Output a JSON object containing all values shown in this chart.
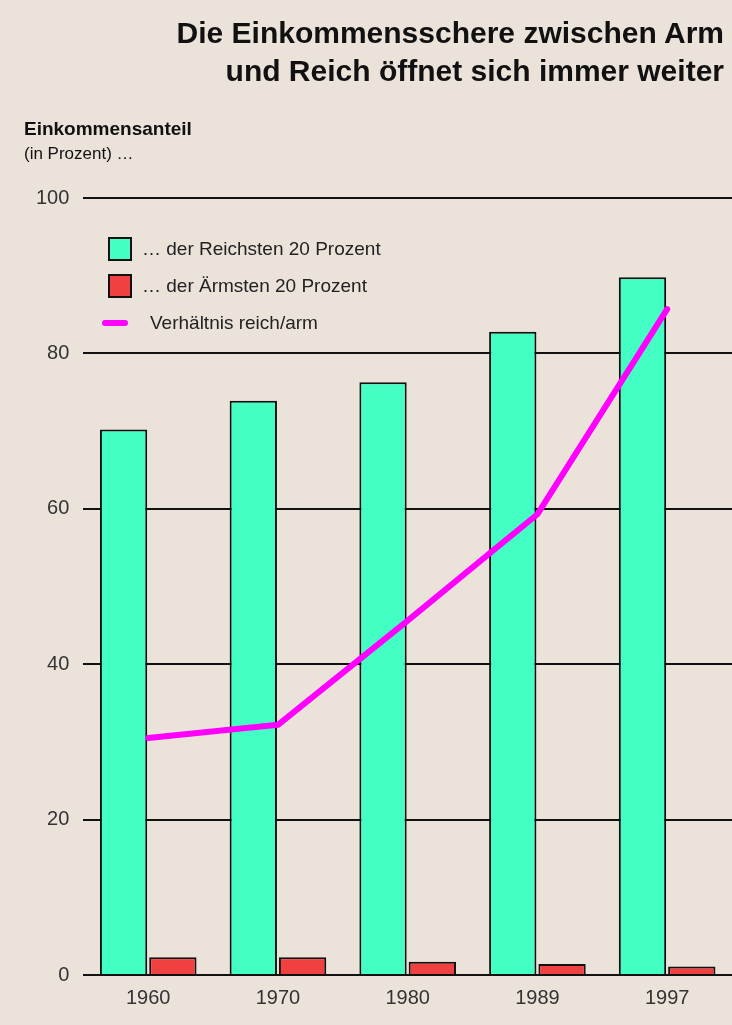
{
  "chart_data": {
    "type": "bar",
    "title": "Die Einkommensschere zwischen Arm und Reich öffnet sich immer weiter",
    "ylabel": "Einkommensanteil",
    "subtitle": "(in Prozent) …",
    "categories": [
      "1960",
      "1970",
      "1980",
      "1989",
      "1997"
    ],
    "series": [
      {
        "name": "… der Reichsten 20 Prozent",
        "color": "#44ffc4",
        "values": [
          70.2,
          73.9,
          76.3,
          82.8,
          89.8
        ]
      },
      {
        "name": "… der Ärmsten 20 Prozent",
        "color": "#f04040",
        "values": [
          2.3,
          2.3,
          1.7,
          1.4,
          1.1
        ]
      },
      {
        "name": "Verhältnis reich/arm",
        "type": "line",
        "color": "#ff00ff",
        "values": [
          30.5,
          32.2,
          45.6,
          59.3,
          85.7
        ]
      }
    ],
    "ylim": [
      0,
      100
    ],
    "yticks": [
      0,
      20,
      40,
      60,
      80,
      100
    ],
    "grid": "y",
    "legend": "top left"
  }
}
